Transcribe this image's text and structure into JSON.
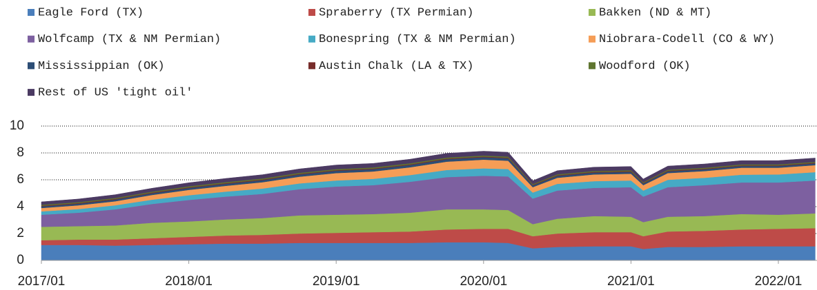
{
  "chart_data": {
    "type": "stacked_area",
    "x": [
      "2017/01",
      "2017/04",
      "2017/07",
      "2017/10",
      "2018/01",
      "2018/04",
      "2018/07",
      "2018/10",
      "2019/01",
      "2019/04",
      "2019/07",
      "2019/10",
      "2020/01",
      "2020/03",
      "2020/05",
      "2020/07",
      "2020/10",
      "2021/01",
      "2021/02",
      "2021/04",
      "2021/07",
      "2021/10",
      "2022/01",
      "2022/04"
    ],
    "xticks": [
      "2017/01",
      "2018/01",
      "2019/01",
      "2020/01",
      "2021/01",
      "2022/01"
    ],
    "ylim": [
      0,
      10
    ],
    "yticks": [
      0,
      2,
      4,
      6,
      8,
      10
    ],
    "grid": true,
    "series": [
      {
        "name": "Eagle Ford (TX)",
        "color": "#4a7ebb",
        "values": [
          1.15,
          1.15,
          1.1,
          1.15,
          1.2,
          1.25,
          1.25,
          1.3,
          1.3,
          1.3,
          1.3,
          1.35,
          1.35,
          1.3,
          0.9,
          1.0,
          1.05,
          1.05,
          0.85,
          1.0,
          1.0,
          1.05,
          1.05,
          1.05
        ]
      },
      {
        "name": "Spraberry (TX Permian)",
        "color": "#be4b48",
        "values": [
          0.35,
          0.4,
          0.45,
          0.5,
          0.55,
          0.6,
          0.65,
          0.7,
          0.75,
          0.8,
          0.85,
          0.95,
          1.0,
          1.05,
          0.9,
          1.0,
          1.05,
          1.05,
          0.95,
          1.15,
          1.2,
          1.25,
          1.3,
          1.35
        ]
      },
      {
        "name": "Bakken (ND & MT)",
        "color": "#98b954",
        "values": [
          1.0,
          1.0,
          1.05,
          1.15,
          1.15,
          1.2,
          1.25,
          1.35,
          1.35,
          1.35,
          1.4,
          1.5,
          1.45,
          1.4,
          0.9,
          1.1,
          1.2,
          1.15,
          1.05,
          1.1,
          1.1,
          1.15,
          1.05,
          1.1
        ]
      },
      {
        "name": "Wolfcamp (TX & NM Permian)",
        "color": "#7d60a0",
        "values": [
          0.9,
          1.0,
          1.2,
          1.4,
          1.6,
          1.7,
          1.8,
          1.95,
          2.1,
          2.15,
          2.3,
          2.4,
          2.5,
          2.5,
          1.9,
          2.1,
          2.1,
          2.2,
          1.9,
          2.2,
          2.3,
          2.35,
          2.4,
          2.45
        ]
      },
      {
        "name": "Bonespring (TX & NM Permian)",
        "color": "#46aac5",
        "values": [
          0.25,
          0.27,
          0.3,
          0.32,
          0.35,
          0.37,
          0.4,
          0.43,
          0.45,
          0.47,
          0.5,
          0.53,
          0.55,
          0.55,
          0.45,
          0.5,
          0.5,
          0.5,
          0.45,
          0.55,
          0.55,
          0.58,
          0.6,
          0.62
        ]
      },
      {
        "name": "Niobrara-Codell (CO & WY)",
        "color": "#f59d56",
        "values": [
          0.25,
          0.28,
          0.3,
          0.35,
          0.4,
          0.43,
          0.47,
          0.5,
          0.55,
          0.55,
          0.58,
          0.62,
          0.65,
          0.62,
          0.4,
          0.45,
          0.5,
          0.5,
          0.4,
          0.5,
          0.5,
          0.52,
          0.5,
          0.52
        ]
      },
      {
        "name": "Mississippian (OK)",
        "color": "#2c4d75",
        "values": [
          0.12,
          0.12,
          0.13,
          0.13,
          0.14,
          0.15,
          0.15,
          0.16,
          0.17,
          0.17,
          0.17,
          0.18,
          0.18,
          0.18,
          0.13,
          0.14,
          0.14,
          0.14,
          0.12,
          0.13,
          0.13,
          0.13,
          0.13,
          0.13
        ]
      },
      {
        "name": "Austin Chalk (LA & TX)",
        "color": "#772c2a",
        "values": [
          0.05,
          0.05,
          0.05,
          0.05,
          0.05,
          0.05,
          0.05,
          0.05,
          0.05,
          0.05,
          0.05,
          0.05,
          0.05,
          0.05,
          0.04,
          0.05,
          0.05,
          0.05,
          0.04,
          0.05,
          0.05,
          0.05,
          0.05,
          0.05
        ]
      },
      {
        "name": "Woodford (OK)",
        "color": "#5f7530",
        "values": [
          0.07,
          0.07,
          0.07,
          0.07,
          0.08,
          0.08,
          0.08,
          0.08,
          0.08,
          0.08,
          0.08,
          0.08,
          0.08,
          0.08,
          0.06,
          0.07,
          0.07,
          0.07,
          0.06,
          0.07,
          0.07,
          0.07,
          0.07,
          0.07
        ]
      },
      {
        "name": "Rest of US 'tight oil'",
        "color": "#4b3a62",
        "values": [
          0.22,
          0.23,
          0.24,
          0.25,
          0.26,
          0.27,
          0.28,
          0.29,
          0.3,
          0.3,
          0.3,
          0.31,
          0.32,
          0.32,
          0.25,
          0.27,
          0.28,
          0.28,
          0.24,
          0.27,
          0.28,
          0.28,
          0.28,
          0.28
        ]
      }
    ]
  }
}
